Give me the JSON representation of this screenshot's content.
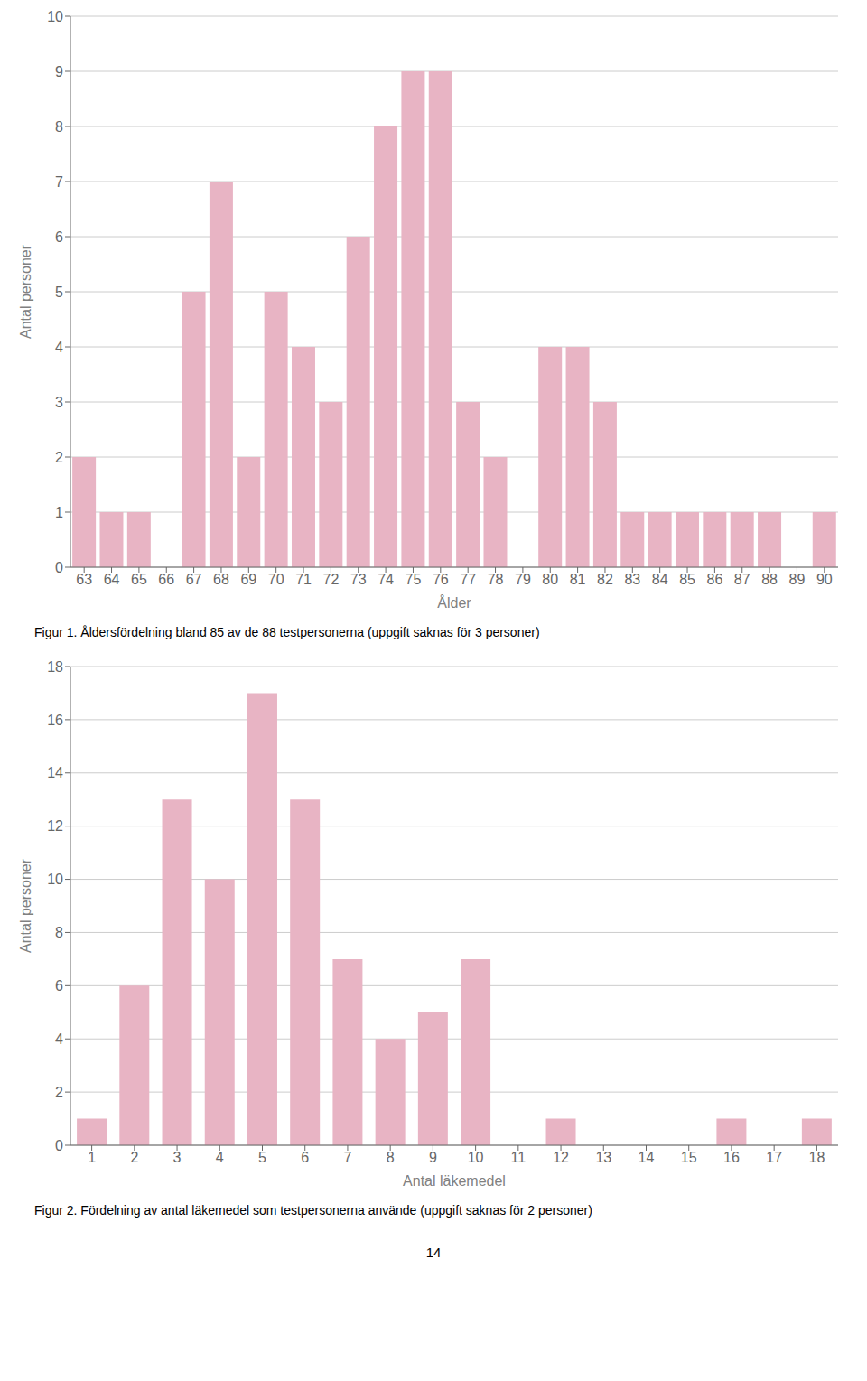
{
  "chart_data": [
    {
      "type": "bar",
      "title": "Figur 1. Åldersfördelning bland 85 av de 88 testpersonerna (uppgift saknas för 3 personer)",
      "xlabel": "Ålder",
      "ylabel": "Antal personer",
      "categories": [
        63,
        64,
        65,
        66,
        67,
        68,
        69,
        70,
        71,
        72,
        73,
        74,
        75,
        76,
        77,
        78,
        79,
        80,
        81,
        82,
        83,
        84,
        85,
        86,
        87,
        88,
        89,
        90
      ],
      "values": [
        2,
        1,
        1,
        0,
        5,
        7,
        2,
        5,
        4,
        3,
        6,
        8,
        9,
        9,
        3,
        2,
        0,
        4,
        4,
        3,
        1,
        1,
        1,
        1,
        1,
        1,
        0,
        1
      ],
      "color": "#e8b4c4",
      "ylim": [
        0,
        10
      ],
      "yticks": [
        0,
        1,
        2,
        3,
        4,
        5,
        6,
        7,
        8,
        9,
        10
      ],
      "grid": true
    },
    {
      "type": "bar",
      "title": "Figur 2. Fördelning av antal läkemedel som testpersonerna använde (uppgift saknas för 2 personer)",
      "xlabel": "Antal läkemedel",
      "ylabel": "Antal personer",
      "categories": [
        1,
        2,
        3,
        4,
        5,
        6,
        7,
        8,
        9,
        10,
        11,
        12,
        13,
        14,
        15,
        16,
        17,
        18
      ],
      "values": [
        1,
        6,
        13,
        10,
        17,
        13,
        7,
        4,
        5,
        7,
        0,
        1,
        0,
        0,
        0,
        1,
        0,
        1
      ],
      "color": "#e8b4c4",
      "ylim": [
        0,
        18
      ],
      "yticks": [
        0,
        2,
        4,
        6,
        8,
        10,
        12,
        14,
        16,
        18
      ],
      "grid": true,
      "annotations": [
        "14"
      ]
    }
  ]
}
